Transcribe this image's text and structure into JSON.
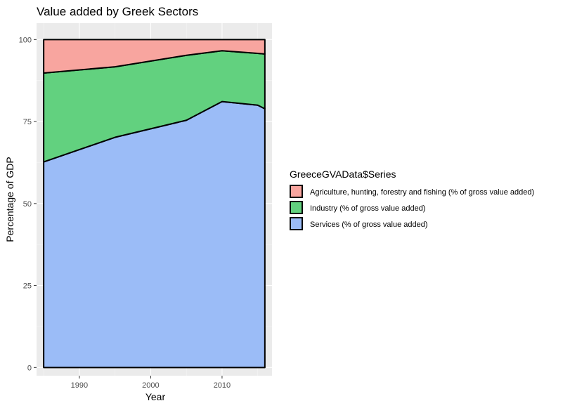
{
  "chart_data": {
    "type": "area",
    "stacked": true,
    "title": "Value added by Greek Sectors",
    "xlabel": "Year",
    "ylabel": "Percentage of GDP",
    "xlim": [
      1984,
      2017
    ],
    "ylim": [
      -2.5,
      105
    ],
    "x_ticks": [
      1990,
      2000,
      2010
    ],
    "y_ticks": [
      0,
      25,
      50,
      75,
      100
    ],
    "grid": true,
    "legend_position": "right",
    "legend_title": "GreeceGVAData$Series",
    "x": [
      1985,
      1995,
      2005,
      2010,
      2015,
      2016
    ],
    "series": [
      {
        "name": "Agriculture, hunting, forestry and fishing (% of gross value added)",
        "color": "#f8a59f",
        "values": [
          10.2,
          8.3,
          4.8,
          3.4,
          4.2,
          4.4
        ]
      },
      {
        "name": "Industry (% of gross value added)",
        "color": "#62d17f",
        "values": [
          27.1,
          21.5,
          19.8,
          15.5,
          15.8,
          16.7
        ]
      },
      {
        "name": "Services (% of gross value added)",
        "color": "#9bbcf7",
        "values": [
          62.7,
          70.2,
          75.4,
          81.1,
          80.0,
          78.9
        ]
      }
    ]
  }
}
